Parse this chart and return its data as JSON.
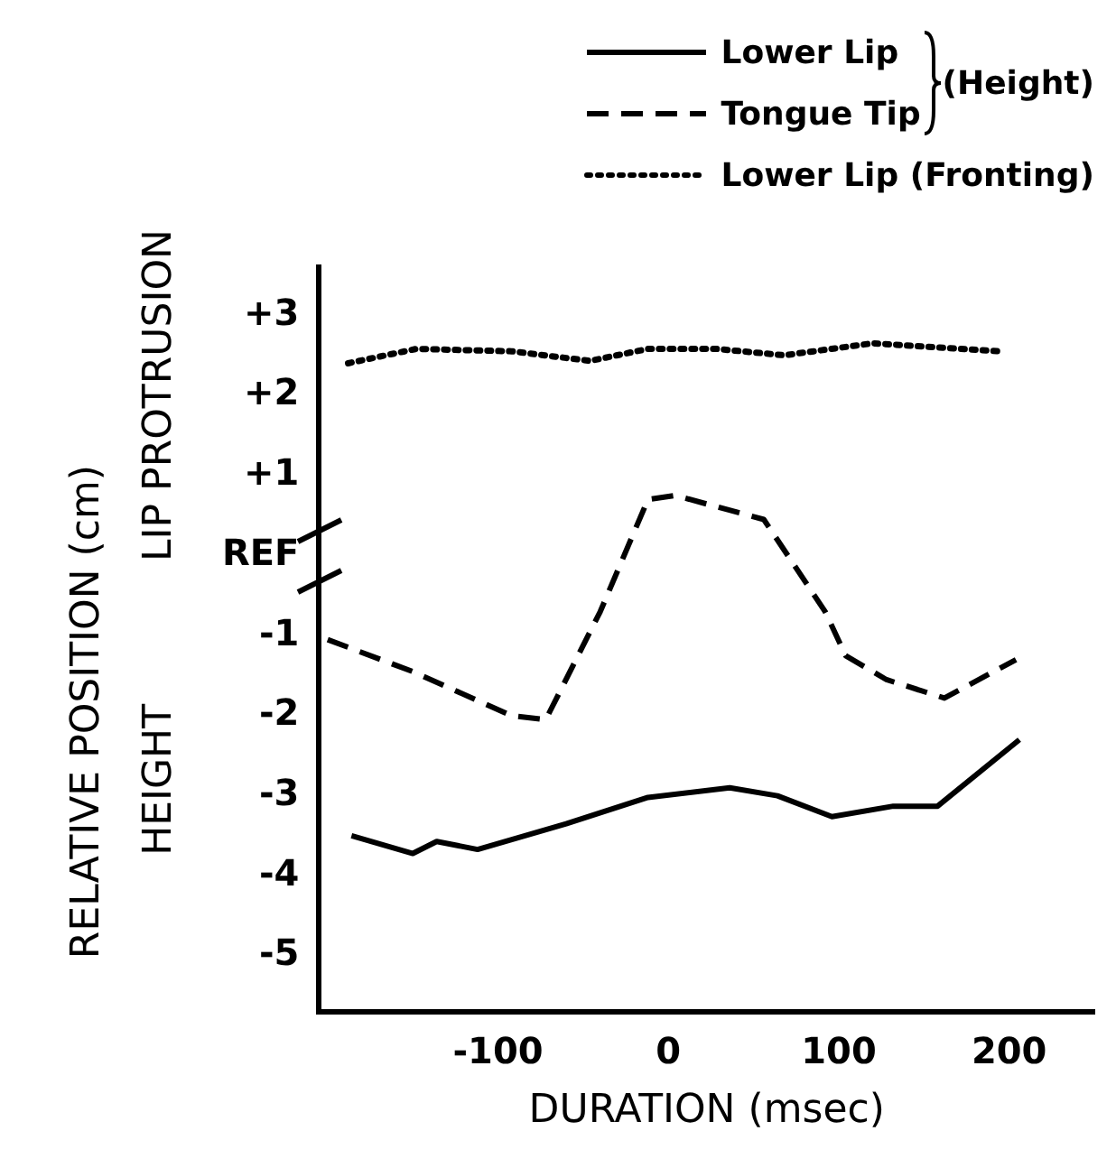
{
  "chart_data": {
    "type": "line",
    "xlabel": "DURATION (msec)",
    "ylabel": "RELATIVE POSITION (cm)",
    "annotations": [
      "LIP PROTRUSION",
      "HEIGHT",
      "(Height)"
    ],
    "series": [
      {
        "name": "Lower Lip",
        "color": "#000000",
        "line_style": "solid",
        "x": [
          -186,
          -150,
          -136,
          -112,
          -60,
          -12,
          36,
          64,
          96,
          132,
          158,
          206
        ],
        "values": [
          -3.5,
          -3.72,
          -3.57,
          -3.67,
          -3.35,
          -3.02,
          -2.9,
          -3.0,
          -3.26,
          -3.13,
          -3.13,
          -2.3
        ]
      },
      {
        "name": "Tongue Tip",
        "color": "#000000",
        "line_style": "dashed",
        "x": [
          -200,
          -150,
          -92,
          -72,
          -40,
          -12,
          4,
          56,
          92,
          104,
          128,
          162,
          204
        ],
        "values": [
          -1.05,
          -1.45,
          -2.0,
          -2.05,
          -0.7,
          0.7,
          0.75,
          0.45,
          -0.7,
          -1.25,
          -1.55,
          -1.78,
          -1.3
        ]
      },
      {
        "name": "Lower Lip (Fronting)",
        "color": "#000000",
        "line_style": "dotted",
        "x": [
          -188,
          -148,
          -92,
          -46,
          -12,
          28,
          68,
          120,
          194
        ],
        "values": [
          2.4,
          2.58,
          2.55,
          2.43,
          2.58,
          2.58,
          2.5,
          2.65,
          2.55
        ]
      }
    ],
    "xlim": [
      -205,
      250
    ],
    "xticks": [
      -100,
      0,
      100,
      200
    ],
    "ylim": [
      -5.7,
      3.6
    ],
    "yticks": [
      {
        "value": 3,
        "label": "+3"
      },
      {
        "value": 2,
        "label": "+2"
      },
      {
        "value": 1,
        "label": "+1"
      },
      {
        "value": 0,
        "label": "REF"
      },
      -1,
      -2,
      -3,
      -4,
      -5
    ],
    "grid": false,
    "legend": "top right",
    "marker": "none"
  }
}
